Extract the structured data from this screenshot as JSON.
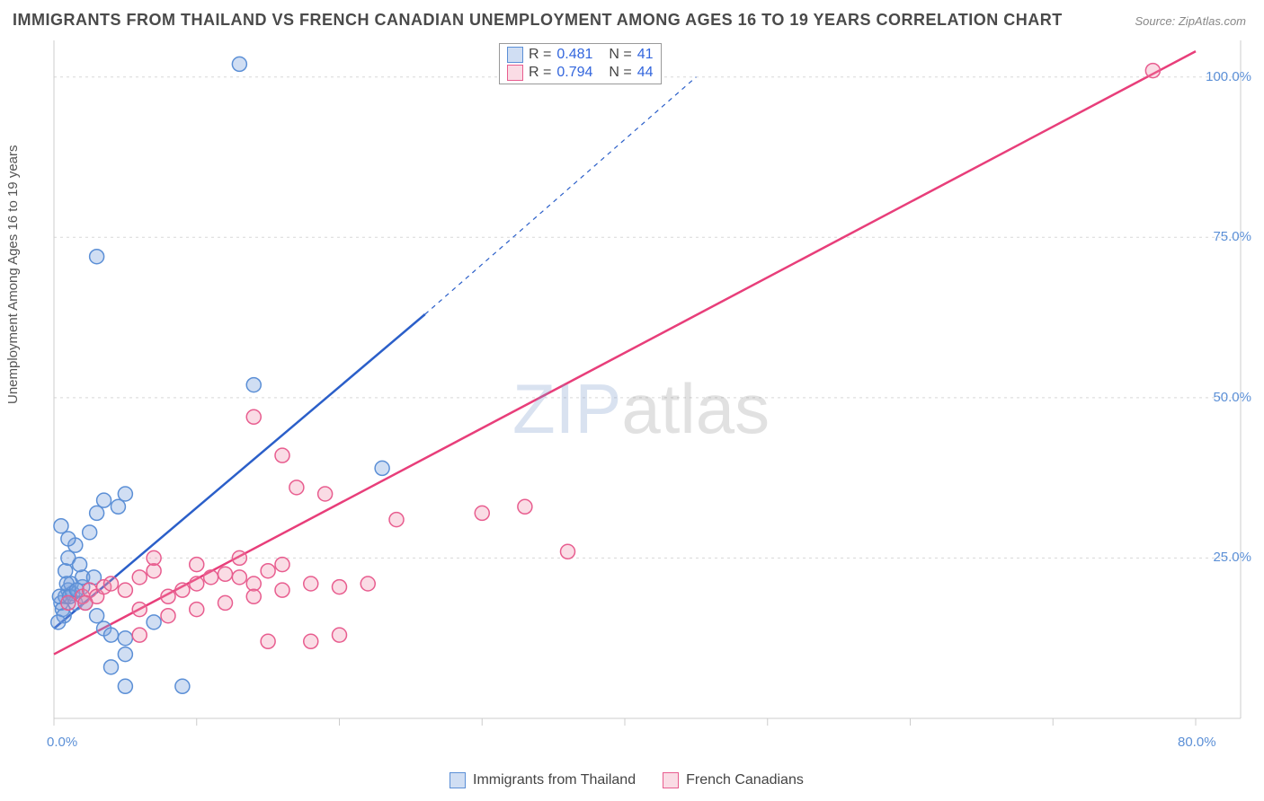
{
  "title": "IMMIGRANTS FROM THAILAND VS FRENCH CANADIAN UNEMPLOYMENT AMONG AGES 16 TO 19 YEARS CORRELATION CHART",
  "source": "Source: ZipAtlas.com",
  "ylabel": "Unemployment Among Ages 16 to 19 years",
  "watermark_zip": "ZIP",
  "watermark_atlas": "atlas",
  "chart": {
    "type": "scatter",
    "background_color": "#ffffff",
    "grid_color": "#d8d8d8",
    "axis_color": "#cccccc",
    "xlim": [
      0,
      80
    ],
    "ylim": [
      0,
      105
    ],
    "xticks": [
      0,
      10,
      20,
      30,
      40,
      50,
      60,
      70,
      80
    ],
    "xtick_labels": {
      "0": "0.0%",
      "80": "80.0%"
    },
    "yticks": [
      25,
      50,
      75,
      100
    ],
    "ytick_labels": {
      "25": "25.0%",
      "50": "50.0%",
      "75": "75.0%",
      "100": "100.0%"
    },
    "tick_label_color": "#5b8fd6",
    "tick_label_fontsize": 15,
    "marker_radius": 8,
    "marker_stroke_width": 1.5,
    "trend_line_width": 2.5,
    "series": [
      {
        "name": "Immigrants from Thailand",
        "legend_label": "Immigrants from Thailand",
        "fill_color": "rgba(120,160,220,0.35)",
        "stroke_color": "#5b8fd6",
        "R": "0.481",
        "N": "41",
        "trend": {
          "x1": 0,
          "y1": 14,
          "x2": 26,
          "y2": 63,
          "dash_x2": 45,
          "dash_y2": 100,
          "color": "#2b5fc9"
        },
        "points": [
          [
            0.5,
            18
          ],
          [
            0.8,
            19
          ],
          [
            1.0,
            20
          ],
          [
            0.6,
            17
          ],
          [
            1.2,
            21
          ],
          [
            1.5,
            18
          ],
          [
            1.3,
            19.5
          ],
          [
            2,
            20.5
          ],
          [
            0.7,
            16
          ],
          [
            0.8,
            23
          ],
          [
            1.0,
            25
          ],
          [
            1.5,
            27
          ],
          [
            2.5,
            29
          ],
          [
            3,
            32
          ],
          [
            3.5,
            34
          ],
          [
            2,
            22
          ],
          [
            1.8,
            24
          ],
          [
            2.2,
            18
          ],
          [
            3,
            16
          ],
          [
            3.5,
            14
          ],
          [
            4,
            13
          ],
          [
            5,
            12.5
          ],
          [
            7,
            15
          ],
          [
            4.5,
            33
          ],
          [
            5,
            35
          ],
          [
            0.5,
            30
          ],
          [
            1,
            28
          ],
          [
            3,
            72
          ],
          [
            13,
            102
          ],
          [
            14,
            52
          ],
          [
            23,
            39
          ],
          [
            5,
            5
          ],
          [
            9,
            5
          ],
          [
            4,
            8
          ],
          [
            5,
            10
          ],
          [
            0.3,
            15
          ],
          [
            0.4,
            19
          ],
          [
            0.9,
            21
          ],
          [
            1.1,
            19
          ],
          [
            1.6,
            20
          ],
          [
            2.8,
            22
          ]
        ]
      },
      {
        "name": "French Canadians",
        "legend_label": "French Canadians",
        "fill_color": "rgba(240,140,170,0.30)",
        "stroke_color": "#e85d8f",
        "R": "0.794",
        "N": "44",
        "trend": {
          "x1": 0,
          "y1": 10,
          "x2": 80,
          "y2": 104,
          "color": "#e83e7a"
        },
        "points": [
          [
            1,
            18
          ],
          [
            2,
            19
          ],
          [
            2.5,
            20
          ],
          [
            3,
            19
          ],
          [
            3.5,
            20.5
          ],
          [
            4,
            21
          ],
          [
            5,
            20
          ],
          [
            6,
            22
          ],
          [
            7,
            23
          ],
          [
            8,
            19
          ],
          [
            9,
            20
          ],
          [
            10,
            21
          ],
          [
            11,
            22
          ],
          [
            12,
            22.5
          ],
          [
            13,
            22
          ],
          [
            14,
            21
          ],
          [
            15,
            23
          ],
          [
            6,
            17
          ],
          [
            8,
            16
          ],
          [
            10,
            17
          ],
          [
            12,
            18
          ],
          [
            14,
            19
          ],
          [
            16,
            20
          ],
          [
            18,
            21
          ],
          [
            20,
            20.5
          ],
          [
            22,
            21
          ],
          [
            7,
            25
          ],
          [
            10,
            24
          ],
          [
            13,
            25
          ],
          [
            16,
            24
          ],
          [
            14,
            47
          ],
          [
            16,
            41
          ],
          [
            17,
            36
          ],
          [
            19,
            35
          ],
          [
            24,
            31
          ],
          [
            30,
            32
          ],
          [
            33,
            33
          ],
          [
            36,
            26
          ],
          [
            15,
            12
          ],
          [
            18,
            12
          ],
          [
            20,
            13
          ],
          [
            6,
            13
          ],
          [
            77,
            101
          ],
          [
            2.2,
            18
          ]
        ]
      }
    ],
    "legend_top": {
      "R_label": "R =",
      "N_label": "N ="
    }
  }
}
